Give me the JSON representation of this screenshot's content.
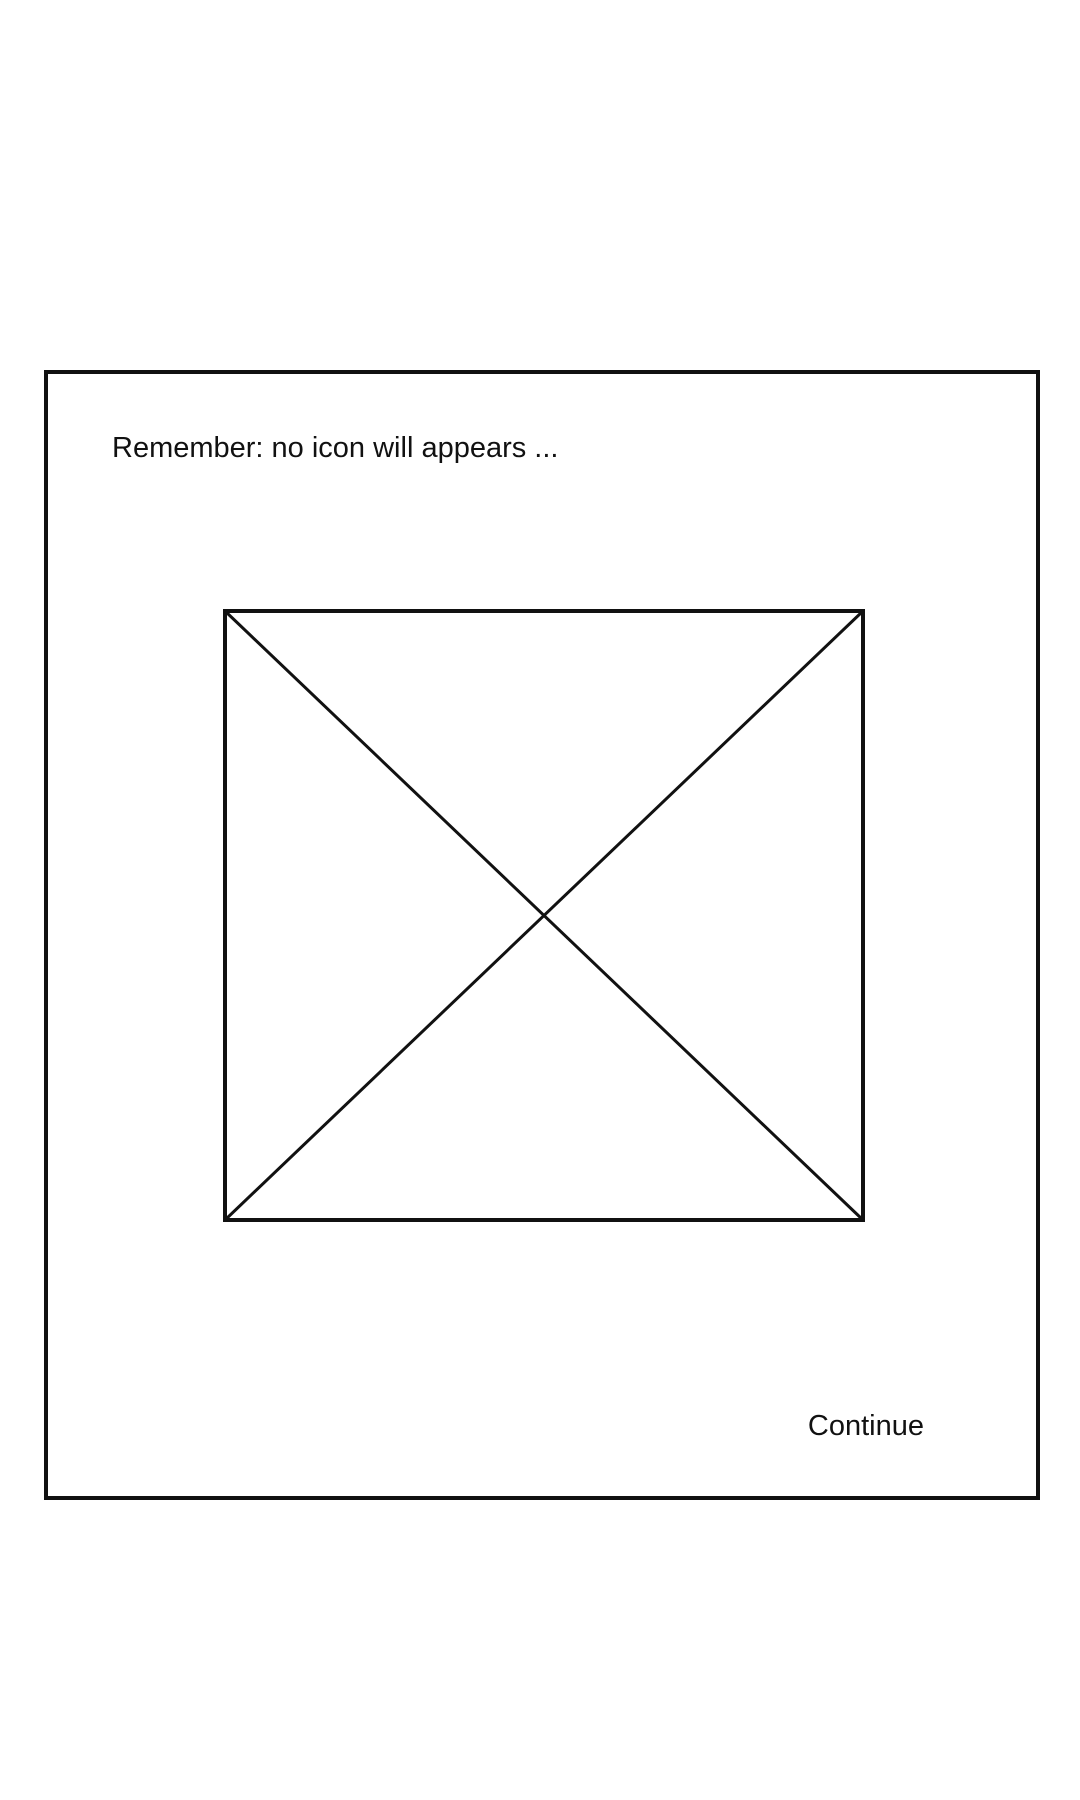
{
  "dialog": {
    "message": "Remember: no icon will appears ...",
    "image_placeholder_icon": "image-placeholder-icon",
    "continue_label": "Continue"
  }
}
